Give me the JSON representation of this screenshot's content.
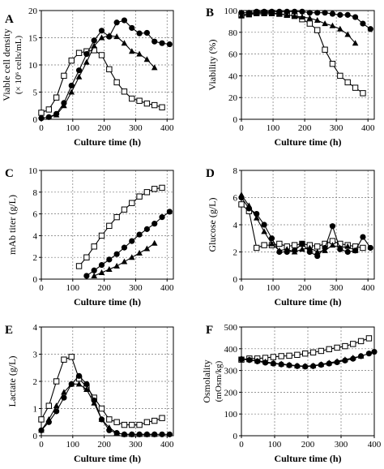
{
  "figure": {
    "panels": [
      "A",
      "B",
      "C",
      "D",
      "E",
      "F"
    ],
    "xlabel": "Culture time (h)"
  },
  "chart_data": [
    {
      "panel_label": "A",
      "type": "line",
      "xlabel": "Culture time (h)",
      "ylabel": "Viable cell density",
      "ylabel_sub": "(× 10⁶ cells/mL)",
      "xlim": [
        0,
        420
      ],
      "ylim": [
        0,
        20
      ],
      "xticks": [
        0,
        100,
        200,
        300,
        400
      ],
      "yticks": [
        0,
        5,
        10,
        15,
        20
      ],
      "grid": "dashed",
      "series": [
        {
          "marker": "open-square",
          "x": [
            0,
            24,
            48,
            72,
            96,
            120,
            144,
            168,
            192,
            216,
            240,
            264,
            288,
            312,
            336,
            360,
            384
          ],
          "y": [
            1.2,
            1.8,
            4.0,
            8.0,
            10.8,
            12.2,
            12.5,
            12.7,
            11.8,
            9.2,
            6.8,
            5.1,
            3.8,
            3.4,
            2.9,
            2.6,
            2.2
          ]
        },
        {
          "marker": "filled-circle",
          "x": [
            0,
            24,
            48,
            72,
            96,
            120,
            144,
            168,
            192,
            216,
            240,
            264,
            288,
            312,
            336,
            360,
            384,
            408
          ],
          "y": [
            0.2,
            0.4,
            1.0,
            3.0,
            6.2,
            9.0,
            12.0,
            14.5,
            16.3,
            15.2,
            17.8,
            18.2,
            16.8,
            15.8,
            15.9,
            14.3,
            14.0,
            13.8
          ]
        },
        {
          "marker": "filled-triangle",
          "x": [
            24,
            48,
            72,
            96,
            120,
            144,
            168,
            192,
            216,
            240,
            264,
            288,
            312,
            336,
            360
          ],
          "y": [
            0.4,
            0.8,
            2.5,
            5.0,
            7.8,
            10.5,
            13.5,
            15.0,
            15.4,
            15.2,
            14.0,
            12.5,
            12.0,
            11.0,
            9.5
          ]
        }
      ]
    },
    {
      "panel_label": "B",
      "type": "line",
      "xlabel": "Culture time (h)",
      "ylabel": "Viability (%)",
      "xlim": [
        0,
        420
      ],
      "ylim": [
        0,
        100
      ],
      "xticks": [
        0,
        100,
        200,
        300,
        400
      ],
      "yticks": [
        0,
        20,
        40,
        60,
        80,
        100
      ],
      "grid": "dashed",
      "series": [
        {
          "marker": "open-square",
          "x": [
            0,
            24,
            48,
            72,
            96,
            120,
            144,
            168,
            192,
            216,
            240,
            264,
            288,
            312,
            336,
            360,
            384
          ],
          "y": [
            96,
            97,
            98,
            98,
            98,
            97,
            96,
            95,
            92,
            88,
            82,
            64,
            51,
            40,
            34,
            29,
            24
          ]
        },
        {
          "marker": "filled-circle",
          "x": [
            0,
            24,
            48,
            72,
            96,
            120,
            144,
            168,
            192,
            216,
            240,
            264,
            288,
            312,
            336,
            360,
            384,
            408
          ],
          "y": [
            98,
            98,
            99,
            99,
            99,
            99,
            99,
            99,
            99,
            98,
            98,
            98,
            97,
            96,
            96,
            94,
            88,
            83
          ]
        },
        {
          "marker": "filled-triangle",
          "x": [
            0,
            24,
            48,
            72,
            96,
            120,
            144,
            168,
            192,
            216,
            240,
            264,
            288,
            312,
            336,
            360
          ],
          "y": [
            95,
            96,
            97,
            97,
            97,
            97,
            96,
            95,
            94,
            93,
            91,
            88,
            86,
            83,
            78,
            70
          ]
        }
      ]
    },
    {
      "panel_label": "C",
      "type": "line",
      "xlabel": "Culture time (h)",
      "ylabel": "mAb titer  (g/L)",
      "xlim": [
        0,
        420
      ],
      "ylim": [
        0,
        10
      ],
      "xticks": [
        0,
        100,
        200,
        300,
        400
      ],
      "yticks": [
        0,
        2,
        4,
        6,
        8,
        10
      ],
      "grid": "dashed",
      "series": [
        {
          "marker": "open-square",
          "x": [
            120,
            144,
            168,
            192,
            216,
            240,
            264,
            288,
            312,
            336,
            360,
            384
          ],
          "y": [
            1.2,
            2.0,
            3.0,
            4.0,
            4.9,
            5.7,
            6.4,
            7.0,
            7.6,
            8.0,
            8.3,
            8.4
          ]
        },
        {
          "marker": "filled-circle",
          "x": [
            144,
            168,
            192,
            216,
            240,
            264,
            288,
            312,
            336,
            360,
            384,
            408
          ],
          "y": [
            0.3,
            0.8,
            1.3,
            1.8,
            2.3,
            2.9,
            3.5,
            4.1,
            4.6,
            5.1,
            5.7,
            6.2
          ]
        },
        {
          "marker": "filled-triangle",
          "x": [
            168,
            192,
            216,
            240,
            264,
            288,
            312,
            336,
            360
          ],
          "y": [
            0.3,
            0.6,
            0.9,
            1.2,
            1.6,
            2.0,
            2.4,
            2.8,
            3.3
          ]
        }
      ]
    },
    {
      "panel_label": "D",
      "type": "line",
      "xlabel": "Culture time (h)",
      "ylabel": "Glucose (g/L)",
      "xlim": [
        0,
        420
      ],
      "ylim": [
        0,
        8
      ],
      "xticks": [
        0,
        100,
        200,
        300,
        400
      ],
      "yticks": [
        0,
        2,
        4,
        6,
        8
      ],
      "grid": "dashed",
      "series": [
        {
          "marker": "open-square",
          "x": [
            0,
            24,
            48,
            72,
            96,
            120,
            144,
            168,
            192,
            216,
            240,
            264,
            288,
            312,
            336,
            360,
            384
          ],
          "y": [
            5.5,
            5.0,
            2.3,
            2.5,
            2.5,
            2.6,
            2.4,
            2.5,
            2.6,
            2.5,
            2.4,
            2.6,
            2.8,
            2.6,
            2.5,
            2.4,
            2.3
          ]
        },
        {
          "marker": "filled-circle",
          "x": [
            0,
            24,
            48,
            72,
            96,
            120,
            144,
            168,
            192,
            216,
            240,
            264,
            288,
            312,
            336,
            360,
            384,
            408
          ],
          "y": [
            6.0,
            5.2,
            4.8,
            4.0,
            3.0,
            2.0,
            2.0,
            2.1,
            2.6,
            2.0,
            1.7,
            2.3,
            3.9,
            2.2,
            2.0,
            2.1,
            3.1,
            2.3
          ]
        },
        {
          "marker": "filled-triangle",
          "x": [
            0,
            24,
            48,
            72,
            96,
            120,
            144,
            168,
            192,
            216,
            240,
            264,
            288,
            312,
            336,
            360
          ],
          "y": [
            6.2,
            5.4,
            4.5,
            3.5,
            2.6,
            2.1,
            2.2,
            2.0,
            2.2,
            2.3,
            2.0,
            2.1,
            2.5,
            2.3,
            2.4,
            2.1
          ]
        }
      ]
    },
    {
      "panel_label": "E",
      "type": "line",
      "xlabel": "Culture time (h)",
      "ylabel": "Lactate (g/L)",
      "xlim": [
        0,
        420
      ],
      "ylim": [
        0,
        4
      ],
      "xticks": [
        0,
        100,
        200,
        300,
        400
      ],
      "yticks": [
        0,
        1,
        2,
        3,
        4
      ],
      "grid": "dashed",
      "series": [
        {
          "marker": "open-square",
          "x": [
            0,
            24,
            48,
            72,
            96,
            120,
            144,
            168,
            192,
            216,
            240,
            264,
            288,
            312,
            336,
            360,
            384
          ],
          "y": [
            0.6,
            1.1,
            2.0,
            2.8,
            2.9,
            2.1,
            1.8,
            1.4,
            1.0,
            0.6,
            0.5,
            0.4,
            0.4,
            0.4,
            0.5,
            0.55,
            0.65
          ]
        },
        {
          "marker": "filled-circle",
          "x": [
            0,
            24,
            48,
            72,
            96,
            120,
            144,
            168,
            192,
            216,
            240,
            264,
            288,
            312,
            336,
            360,
            384,
            408
          ],
          "y": [
            0.2,
            0.5,
            0.9,
            1.4,
            1.9,
            2.2,
            1.9,
            1.3,
            0.6,
            0.2,
            0.1,
            0.05,
            0.05,
            0.05,
            0.05,
            0.05,
            0.05,
            0.05
          ]
        },
        {
          "marker": "filled-triangle",
          "x": [
            0,
            24,
            48,
            72,
            96,
            120,
            144,
            168,
            192,
            216,
            240,
            264,
            288,
            312,
            336,
            360
          ],
          "y": [
            0.2,
            0.6,
            1.1,
            1.6,
            1.9,
            1.9,
            1.7,
            1.2,
            0.6,
            0.3,
            0.1,
            0.05,
            0.05,
            0.05,
            0.05,
            0.05
          ]
        }
      ]
    },
    {
      "panel_label": "F",
      "type": "line",
      "xlabel": "Culture time (h)",
      "ylabel": "Osmolality",
      "ylabel_sub": "(mOsm/kg)",
      "xlim": [
        0,
        400
      ],
      "ylim": [
        0,
        500
      ],
      "xticks": [
        0,
        100,
        200,
        300,
        400
      ],
      "yticks": [
        0,
        100,
        200,
        300,
        400,
        500
      ],
      "grid": "dashed",
      "series": [
        {
          "marker": "open-square",
          "x": [
            0,
            24,
            48,
            72,
            96,
            120,
            144,
            168,
            192,
            216,
            240,
            264,
            288,
            312,
            336,
            360,
            384
          ],
          "y": [
            350,
            355,
            355,
            358,
            362,
            366,
            368,
            372,
            378,
            383,
            390,
            398,
            405,
            412,
            422,
            435,
            448
          ]
        },
        {
          "marker": "filled-circle",
          "x": [
            0,
            24,
            48,
            72,
            96,
            120,
            144,
            168,
            192,
            216,
            240,
            264,
            288,
            312,
            336,
            360,
            384,
            400
          ],
          "y": [
            352,
            348,
            342,
            336,
            332,
            328,
            324,
            320,
            318,
            320,
            326,
            332,
            338,
            346,
            354,
            366,
            378,
            386
          ]
        },
        {
          "marker": "filled-triangle",
          "x": [
            0,
            24,
            48,
            72,
            96,
            120,
            144,
            168,
            192,
            216,
            240,
            264,
            288,
            312,
            336,
            360
          ],
          "y": [
            355,
            350,
            344,
            340,
            334,
            330,
            326,
            322,
            320,
            322,
            328,
            335,
            342,
            350,
            358,
            366
          ]
        }
      ]
    }
  ]
}
